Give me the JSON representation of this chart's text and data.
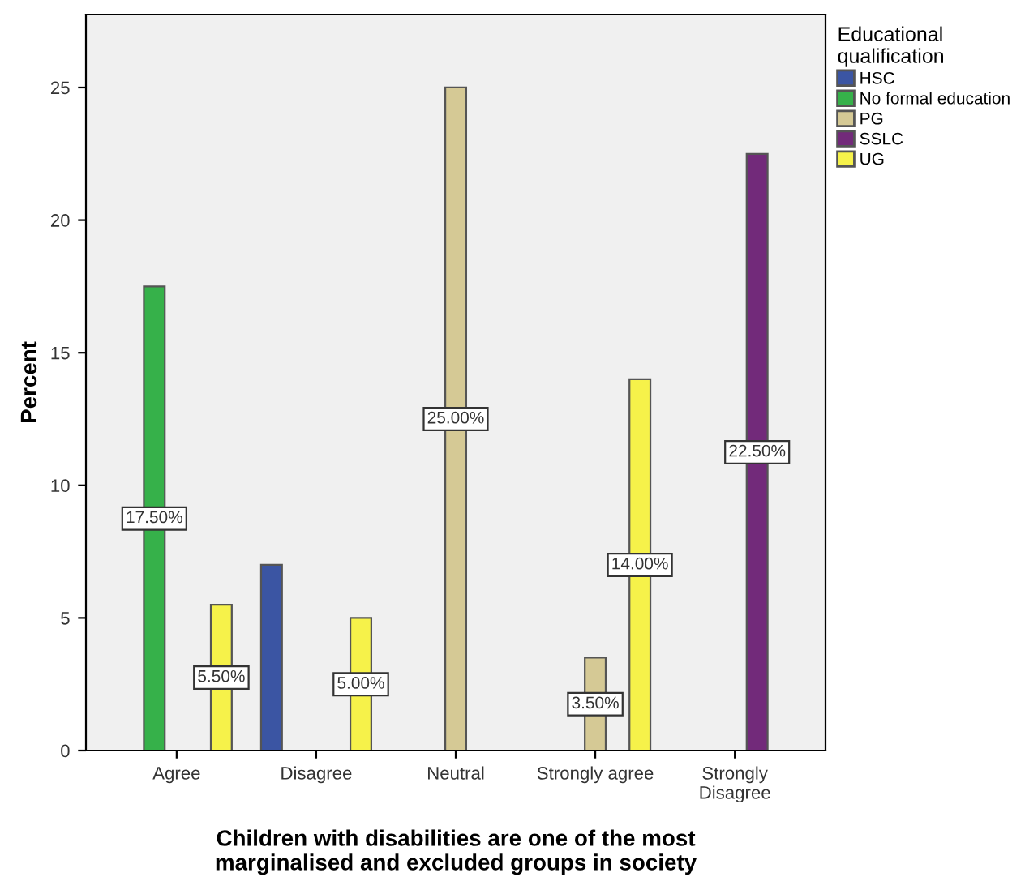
{
  "chart_data": {
    "type": "bar",
    "categories": [
      "Agree",
      "Disagree",
      "Neutral",
      "Strongly agree",
      "Strongly\nDisagree"
    ],
    "xlabel": "Children with disabilities are one of the most\nmarginalised and excluded groups in society",
    "ylabel": "Percent",
    "legend_title": "Educational\nqualification",
    "legend": "top right",
    "grid": false,
    "ylim": [
      0,
      27.75
    ],
    "yticks": [
      0,
      5,
      10,
      15,
      20,
      25
    ],
    "series": [
      {
        "name": "HSC",
        "color": "#3b55a3",
        "values": [
          null,
          7.0,
          null,
          null,
          null
        ],
        "value_labels": [
          null,
          null,
          null,
          null,
          null
        ]
      },
      {
        "name": "No formal education",
        "color": "#36b14a",
        "values": [
          17.5,
          null,
          null,
          null,
          null
        ],
        "value_labels": [
          "17.50%",
          null,
          null,
          null,
          null
        ]
      },
      {
        "name": "PG",
        "color": "#d5c995",
        "values": [
          null,
          null,
          25.0,
          3.5,
          null
        ],
        "value_labels": [
          null,
          null,
          "25.00%",
          "3.50%",
          null
        ]
      },
      {
        "name": "SSLC",
        "color": "#722a7a",
        "values": [
          null,
          null,
          null,
          null,
          22.5
        ],
        "value_labels": [
          null,
          null,
          null,
          null,
          "22.50%"
        ]
      },
      {
        "name": "UG",
        "color": "#f6f24a",
        "values": [
          5.5,
          5.0,
          null,
          14.0,
          null
        ],
        "value_labels": [
          "5.50%",
          "5.00%",
          null,
          "14.00%",
          null
        ]
      }
    ]
  }
}
